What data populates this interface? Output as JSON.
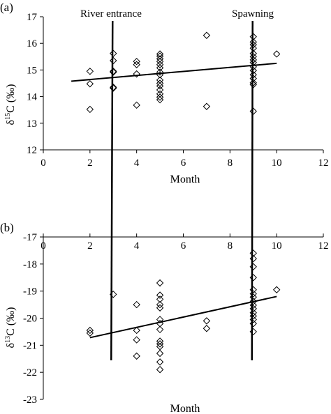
{
  "chart_data": [
    {
      "panel_label": "(a)",
      "type": "scatter",
      "xlabel": "Month",
      "ylabel": "δ15C (‰)",
      "ylabel_parts": {
        "delta": "δ",
        "sup": "15",
        "rest": "C (‰)"
      },
      "xlim": [
        0,
        12
      ],
      "ylim": [
        12,
        17
      ],
      "xticks": [
        0,
        2,
        4,
        6,
        8,
        10,
        12
      ],
      "yticks": [
        12,
        13,
        14,
        15,
        16,
        17
      ],
      "grid": false,
      "marker": "open-diamond",
      "points": [
        [
          2,
          14.95
        ],
        [
          2,
          14.48
        ],
        [
          2,
          13.52
        ],
        [
          3,
          15.62
        ],
        [
          3,
          15.35
        ],
        [
          3,
          14.95
        ],
        [
          3,
          14.92
        ],
        [
          3,
          14.35
        ],
        [
          3,
          14.32
        ],
        [
          4,
          15.32
        ],
        [
          4,
          15.2
        ],
        [
          4,
          14.85
        ],
        [
          4,
          13.68
        ],
        [
          5,
          15.6
        ],
        [
          5,
          15.52
        ],
        [
          5,
          15.42
        ],
        [
          5,
          15.32
        ],
        [
          5,
          15.2
        ],
        [
          5,
          15.08
        ],
        [
          5,
          14.92
        ],
        [
          5,
          14.82
        ],
        [
          5,
          14.62
        ],
        [
          5,
          14.5
        ],
        [
          5,
          14.4
        ],
        [
          5,
          14.25
        ],
        [
          5,
          14.1
        ],
        [
          5,
          13.98
        ],
        [
          5,
          13.88
        ],
        [
          7,
          16.3
        ],
        [
          7,
          13.63
        ],
        [
          9,
          16.25
        ],
        [
          9,
          16.05
        ],
        [
          9,
          15.95
        ],
        [
          9,
          15.82
        ],
        [
          9,
          15.62
        ],
        [
          9,
          15.5
        ],
        [
          9,
          15.38
        ],
        [
          9,
          15.28
        ],
        [
          9,
          15.12
        ],
        [
          9,
          14.98
        ],
        [
          9,
          14.82
        ],
        [
          9,
          14.68
        ],
        [
          9,
          14.52
        ],
        [
          9,
          14.45
        ],
        [
          9,
          13.45
        ],
        [
          10,
          15.6
        ]
      ],
      "trendline": {
        "x": [
          1.2,
          10
        ],
        "y": [
          14.58,
          15.25
        ]
      },
      "annotations": [
        {
          "text": "River entrance",
          "x": 3
        },
        {
          "text": "Spawning",
          "x": 9
        }
      ]
    },
    {
      "panel_label": "(b)",
      "type": "scatter",
      "xlabel": "Month",
      "ylabel": "δ13C (‰)",
      "ylabel_parts": {
        "delta": "δ",
        "sup": "13",
        "rest": "C (‰)"
      },
      "xlim": [
        0,
        12
      ],
      "ylim": [
        -23,
        -17
      ],
      "xticks": [
        0,
        2,
        4,
        6,
        8,
        10,
        12
      ],
      "yticks": [
        -23,
        -22,
        -21,
        -20,
        -19,
        -18,
        -17
      ],
      "grid": false,
      "marker": "open-diamond",
      "points": [
        [
          2,
          -20.45
        ],
        [
          2,
          -20.55
        ],
        [
          3,
          -19.12
        ],
        [
          4,
          -19.5
        ],
        [
          4,
          -20.45
        ],
        [
          4,
          -20.8
        ],
        [
          4,
          -21.4
        ],
        [
          5,
          -18.7
        ],
        [
          5,
          -19.15
        ],
        [
          5,
          -19.3
        ],
        [
          5,
          -19.5
        ],
        [
          5,
          -19.62
        ],
        [
          5,
          -20.05
        ],
        [
          5,
          -20.2
        ],
        [
          5,
          -20.42
        ],
        [
          5,
          -20.85
        ],
        [
          5,
          -20.95
        ],
        [
          5,
          -21.05
        ],
        [
          5,
          -21.3
        ],
        [
          5,
          -21.62
        ],
        [
          5,
          -21.9
        ],
        [
          7,
          -20.1
        ],
        [
          7,
          -20.38
        ],
        [
          9,
          -17.6
        ],
        [
          9,
          -17.8
        ],
        [
          9,
          -18.1
        ],
        [
          9,
          -18.5
        ],
        [
          9,
          -18.95
        ],
        [
          9,
          -19.1
        ],
        [
          9,
          -19.22
        ],
        [
          9,
          -19.38
        ],
        [
          9,
          -19.52
        ],
        [
          9,
          -19.65
        ],
        [
          9,
          -19.8
        ],
        [
          9,
          -19.92
        ],
        [
          9,
          -20.05
        ],
        [
          9,
          -20.2
        ],
        [
          9,
          -20.5
        ],
        [
          10,
          -18.95
        ]
      ],
      "trendline": {
        "x": [
          2,
          10
        ],
        "y": [
          -20.72,
          -19.2
        ]
      }
    }
  ],
  "vertical_event_lines": [
    {
      "x": 3,
      "label": "River entrance"
    },
    {
      "x": 9,
      "label": "Spawning"
    }
  ]
}
